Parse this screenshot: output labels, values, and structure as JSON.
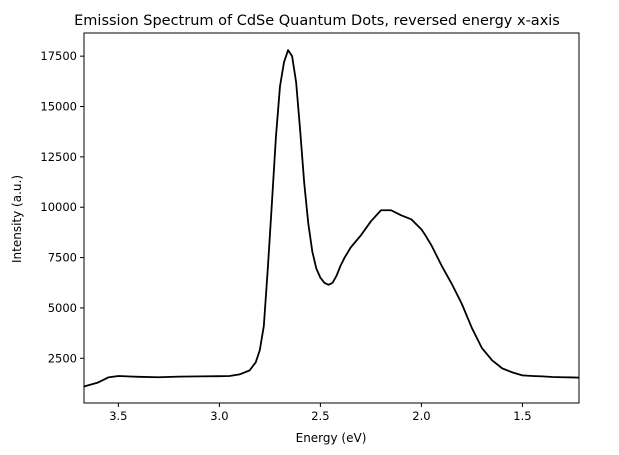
{
  "chart_data": {
    "type": "line",
    "title": "Emission Spectrum of CdSe Quantum Dots, reversed energy x-axis",
    "xlabel": "Energy (eV)",
    "ylabel": "Intensity (a.u.)",
    "x_reversed": true,
    "xlim": [
      3.67,
      1.22
    ],
    "ylim": [
      280,
      18650
    ],
    "xticks": [
      3.5,
      3.0,
      2.5,
      2.0,
      1.5
    ],
    "xtick_labels": [
      "3.5",
      "3.0",
      "2.5",
      "2.0",
      "1.5"
    ],
    "yticks": [
      2500,
      5000,
      7500,
      10000,
      12500,
      15000,
      17500
    ],
    "ytick_labels": [
      "2500",
      "5000",
      "7500",
      "10000",
      "12500",
      "15000",
      "17500"
    ],
    "grid": false,
    "line_color": "#000000",
    "series": [
      {
        "x": [
          3.67,
          3.6,
          3.55,
          3.5,
          3.4,
          3.3,
          3.2,
          3.1,
          3.0,
          2.95,
          2.9,
          2.85,
          2.82,
          2.8,
          2.78,
          2.76,
          2.74,
          2.72,
          2.7,
          2.68,
          2.66,
          2.64,
          2.62,
          2.6,
          2.58,
          2.56,
          2.54,
          2.52,
          2.5,
          2.48,
          2.46,
          2.44,
          2.42,
          2.4,
          2.38,
          2.35,
          2.3,
          2.25,
          2.2,
          2.15,
          2.12,
          2.1,
          2.05,
          2.0,
          1.98,
          1.95,
          1.9,
          1.85,
          1.8,
          1.75,
          1.7,
          1.65,
          1.6,
          1.55,
          1.5,
          1.45,
          1.4,
          1.35,
          1.3,
          1.25,
          1.22
        ],
        "y": [
          1100,
          1300,
          1550,
          1620,
          1580,
          1560,
          1590,
          1600,
          1610,
          1620,
          1700,
          1900,
          2300,
          2900,
          4100,
          7000,
          10200,
          13500,
          16000,
          17200,
          17800,
          17500,
          16200,
          13800,
          11200,
          9200,
          7800,
          6950,
          6500,
          6250,
          6150,
          6250,
          6600,
          7100,
          7500,
          8000,
          8600,
          9300,
          9850,
          9850,
          9700,
          9600,
          9400,
          8900,
          8600,
          8100,
          7100,
          6200,
          5200,
          4000,
          3000,
          2400,
          2000,
          1800,
          1650,
          1620,
          1600,
          1570,
          1560,
          1550,
          1540
        ]
      }
    ]
  }
}
